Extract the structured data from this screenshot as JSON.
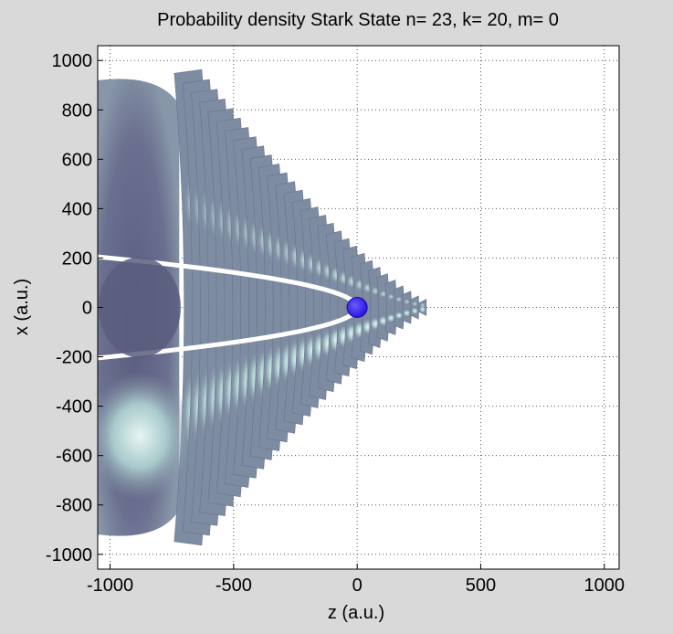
{
  "chart_data": {
    "type": "heatmap",
    "title": "Probability density Stark State  n= 23, k= 20, m= 0",
    "xlabel": "z (a.u.)",
    "ylabel": "x (a.u.)",
    "xlim": [
      -1050,
      1060
    ],
    "ylim": [
      -1060,
      1060
    ],
    "xticks": [
      -1000,
      -500,
      0,
      500,
      1000
    ],
    "yticks": [
      1000,
      800,
      600,
      400,
      200,
      0,
      -200,
      -400,
      -600,
      -800,
      -1000
    ],
    "grid": true,
    "nucleus": {
      "z": 0,
      "x": 0
    },
    "colors": {
      "figure_bg": "#d9d9d9",
      "plot_bg": "#ffffff",
      "density_dark": "#5b5d7e",
      "density_mid": "#7f8ea3",
      "density_light": "#c3e4e2",
      "nucleus": "#2b14e0"
    }
  }
}
